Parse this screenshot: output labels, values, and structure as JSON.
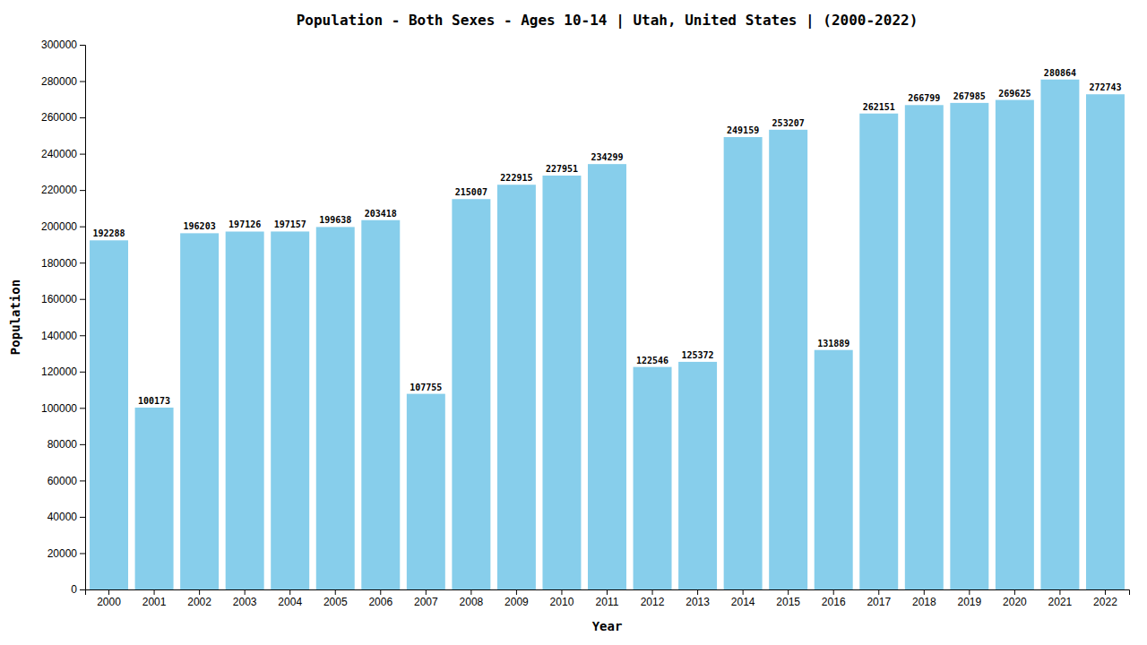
{
  "chart_data": {
    "type": "bar",
    "title": "Population - Both Sexes - Ages 10-14 | Utah, United States |  (2000-2022)",
    "xlabel": "Year",
    "ylabel": "Population",
    "categories": [
      "2000",
      "2001",
      "2002",
      "2003",
      "2004",
      "2005",
      "2006",
      "2007",
      "2008",
      "2009",
      "2010",
      "2011",
      "2012",
      "2013",
      "2014",
      "2015",
      "2016",
      "2017",
      "2018",
      "2019",
      "2020",
      "2021",
      "2022"
    ],
    "values": [
      192288,
      100173,
      196203,
      197126,
      197157,
      199638,
      203418,
      107755,
      215007,
      222915,
      227951,
      234299,
      122546,
      125372,
      249159,
      253207,
      131889,
      262151,
      266799,
      267985,
      269625,
      280864,
      272743
    ],
    "color": "#87CEEB",
    "ylim": [
      0,
      300000
    ],
    "yticks": [
      0,
      20000,
      40000,
      60000,
      80000,
      100000,
      120000,
      140000,
      160000,
      180000,
      200000,
      220000,
      240000,
      260000,
      280000,
      300000
    ],
    "grid": false,
    "data_labels": true
  }
}
